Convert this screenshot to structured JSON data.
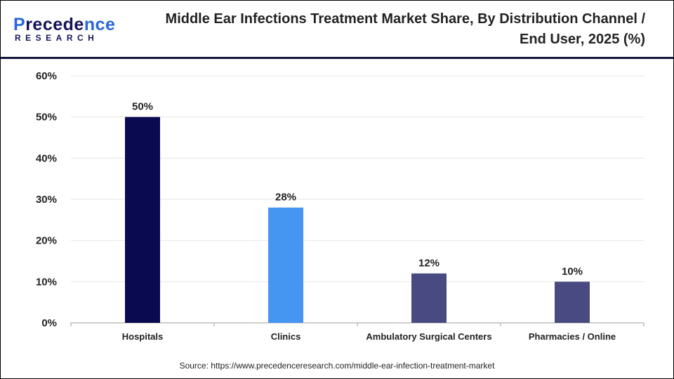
{
  "logo": {
    "line1a": "P",
    "line1b": "recede",
    "line1c": "nce",
    "line2": "RESEARCH"
  },
  "title": "Middle Ear Infections Treatment Market Share, By Distribution Channel / End User, 2025 (%)",
  "source": "Source: https://www.precedenceresearch.com/middle-ear-infection-treatment-market",
  "chart_data": {
    "type": "bar",
    "title": "Middle Ear Infections Treatment Market Share, By Distribution Channel / End User, 2025 (%)",
    "categories": [
      "Hospitals",
      "Clinics",
      "Ambulatory Surgical Centers",
      "Pharmacies / Online"
    ],
    "values": [
      50,
      28,
      12,
      10
    ],
    "data_labels": [
      "50%",
      "28%",
      "12%",
      "10%"
    ],
    "colors": [
      "#0a0a50",
      "#4596f0",
      "#4a4a82",
      "#4a4a82"
    ],
    "ylim": [
      0,
      60
    ],
    "yticks": [
      0,
      10,
      20,
      30,
      40,
      50,
      60
    ],
    "ytick_labels": [
      "0%",
      "10%",
      "20%",
      "30%",
      "40%",
      "50%",
      "60%"
    ],
    "xlabel": "",
    "ylabel": "",
    "grid": true
  }
}
